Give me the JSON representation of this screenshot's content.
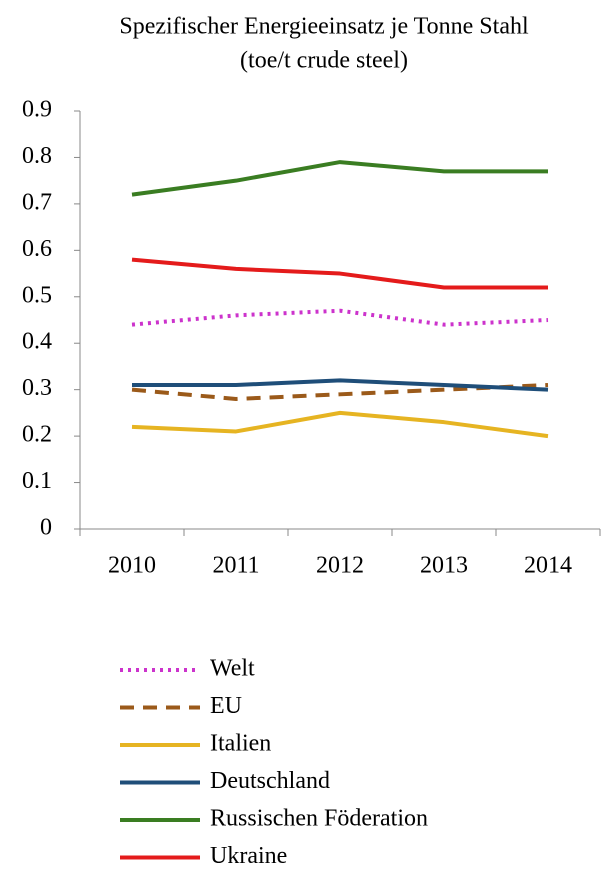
{
  "chart_data": {
    "type": "line",
    "title": "Spezifischer Energieeinsatz je Tonne Stahl",
    "subtitle": "(toe/t crude steel)",
    "categories": [
      "2010",
      "2011",
      "2012",
      "2013",
      "2014"
    ],
    "series": [
      {
        "name": "Welt",
        "color": "#cc33cc",
        "style": "dotted",
        "values": [
          0.44,
          0.46,
          0.47,
          0.44,
          0.45
        ]
      },
      {
        "name": "EU",
        "color": "#9b5a1a",
        "style": "dashed",
        "values": [
          0.3,
          0.28,
          0.29,
          0.3,
          0.31
        ]
      },
      {
        "name": "Italien",
        "color": "#e6b422",
        "style": "solid",
        "values": [
          0.22,
          0.21,
          0.25,
          0.23,
          0.2
        ]
      },
      {
        "name": "Deutschland",
        "color": "#1f4e79",
        "style": "solid",
        "values": [
          0.31,
          0.31,
          0.32,
          0.31,
          0.3
        ]
      },
      {
        "name": "Russischen Föderation",
        "color": "#3a7d22",
        "style": "solid",
        "values": [
          0.72,
          0.75,
          0.79,
          0.77,
          0.77
        ]
      },
      {
        "name": "Ukraine",
        "color": "#e41b1b",
        "style": "solid",
        "values": [
          0.58,
          0.56,
          0.55,
          0.52,
          0.52
        ]
      }
    ],
    "ylim": [
      0,
      0.9
    ],
    "yticks": [
      0,
      0.1,
      0.2,
      0.3,
      0.4,
      0.5,
      0.6,
      0.7,
      0.8,
      0.9
    ],
    "grid": false,
    "legend": "bottom"
  }
}
